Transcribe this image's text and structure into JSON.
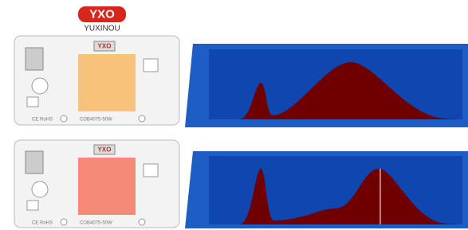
{
  "brand": {
    "logo": "YXO",
    "name": "YUXINOU"
  },
  "modules": [
    {
      "chip_label": "YXO",
      "cert": "CE RoHS",
      "model": "COB4075-50W"
    },
    {
      "chip_label": "YXO",
      "cert": "CE RoHS",
      "model": "COB4075-50W"
    }
  ]
}
